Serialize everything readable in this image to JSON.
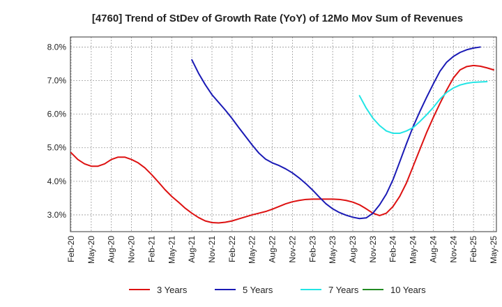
{
  "chart_data": {
    "type": "line",
    "title": "[4760]  Trend of StDev of Growth Rate (YoY) of 12Mo Mov Sum of Revenues",
    "xlabel": "",
    "ylabel": "",
    "ylim": [
      2.5,
      8.3
    ],
    "grid": true,
    "legend_position": "bottom",
    "x_tick_labels": [
      "Feb-20",
      "May-20",
      "Aug-20",
      "Nov-20",
      "Feb-21",
      "May-21",
      "Aug-21",
      "Nov-21",
      "Feb-22",
      "May-22",
      "Aug-22",
      "Nov-22",
      "Feb-23",
      "May-23",
      "Aug-23",
      "Nov-23",
      "Feb-24",
      "May-24",
      "Aug-24",
      "Nov-24",
      "Feb-25",
      "May-25"
    ],
    "y_ticks": [
      3.0,
      4.0,
      5.0,
      6.0,
      7.0,
      8.0
    ],
    "y_tick_labels": [
      "3.0%",
      "4.0%",
      "5.0%",
      "6.0%",
      "7.0%",
      "8.0%"
    ],
    "series": [
      {
        "name": "3 Years",
        "color": "#dd1111",
        "start_index": 0,
        "values": [
          4.85,
          4.65,
          4.52,
          4.45,
          4.45,
          4.52,
          4.65,
          4.72,
          4.72,
          4.65,
          4.55,
          4.4,
          4.2,
          3.98,
          3.75,
          3.55,
          3.38,
          3.2,
          3.05,
          2.92,
          2.82,
          2.77,
          2.76,
          2.78,
          2.82,
          2.88,
          2.94,
          3.0,
          3.05,
          3.1,
          3.17,
          3.25,
          3.33,
          3.39,
          3.43,
          3.46,
          3.47,
          3.47,
          3.47,
          3.47,
          3.46,
          3.43,
          3.38,
          3.3,
          3.18,
          3.05,
          2.98,
          3.05,
          3.25,
          3.55,
          3.95,
          4.45,
          4.95,
          5.45,
          5.9,
          6.32,
          6.72,
          7.08,
          7.32,
          7.42,
          7.45,
          7.43,
          7.38,
          7.32
        ]
      },
      {
        "name": "5 Years",
        "color": "#1a1ab5",
        "start_index": 18,
        "values": [
          7.62,
          7.22,
          6.88,
          6.58,
          6.35,
          6.12,
          5.87,
          5.6,
          5.34,
          5.08,
          4.84,
          4.66,
          4.55,
          4.47,
          4.37,
          4.25,
          4.1,
          3.93,
          3.74,
          3.53,
          3.33,
          3.18,
          3.07,
          2.99,
          2.93,
          2.89,
          2.91,
          3.05,
          3.3,
          3.62,
          4.05,
          4.58,
          5.12,
          5.63,
          6.08,
          6.5,
          6.9,
          7.28,
          7.55,
          7.72,
          7.84,
          7.92,
          7.97,
          8.0
        ]
      },
      {
        "name": "7 Years",
        "color": "#22e5e5",
        "start_index": 43,
        "values": [
          6.55,
          6.18,
          5.88,
          5.66,
          5.5,
          5.43,
          5.43,
          5.5,
          5.6,
          5.78,
          5.98,
          6.2,
          6.45,
          6.65,
          6.78,
          6.87,
          6.92,
          6.95,
          6.96,
          6.97
        ]
      },
      {
        "name": "10 Years",
        "color": "#228b22",
        "start_index": 0,
        "values": []
      }
    ]
  }
}
